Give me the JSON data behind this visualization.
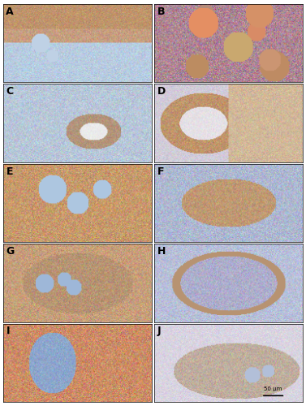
{
  "panels": [
    "A",
    "B",
    "C",
    "D",
    "E",
    "F",
    "G",
    "H",
    "I",
    "J"
  ],
  "nrows": 5,
  "ncols": 2,
  "figsize": [
    3.77,
    5.0
  ],
  "dpi": 100,
  "label_fontsize": 9,
  "label_color": "black",
  "label_fontweight": "bold",
  "background_color": "white",
  "border_color": "black",
  "border_lw": 0.5,
  "panel_colors": [
    [
      "#c8956a",
      "#b07850",
      "#d4956a",
      "#c09070",
      "#d4a070"
    ],
    [
      "#c0788a",
      "#b86878",
      "#c88070",
      "#b07070",
      "#c07868"
    ],
    [
      "#b09090",
      "#a88070",
      "#c89070",
      "#b88060",
      "#c08870"
    ],
    [
      "#c09870",
      "#b08070",
      "#c09070",
      "#a07868",
      "#b08870"
    ],
    [
      "#b87868",
      "#c08878",
      "#b88070",
      "#c09870",
      "#c09070"
    ],
    [
      "#9090b0",
      "#8888a8",
      "#9898b0",
      "#8890a8",
      "#9090b0"
    ],
    [
      "#c09878",
      "#b08870",
      "#c09870",
      "#b08860",
      "#c09870"
    ],
    [
      "#a08898",
      "#9880a0",
      "#a89098",
      "#9888a0",
      "#a08898"
    ],
    [
      "#c87858",
      "#b87060",
      "#c88060",
      "#b88068",
      "#c88060"
    ],
    [
      "#b09898",
      "#a08890",
      "#b09898",
      "#a08890",
      "#b09898"
    ]
  ],
  "scale_bar_text": "50 µm",
  "scale_bar_panel": "J",
  "outer_border_color": "#888888",
  "outer_border_lw": 1.0
}
